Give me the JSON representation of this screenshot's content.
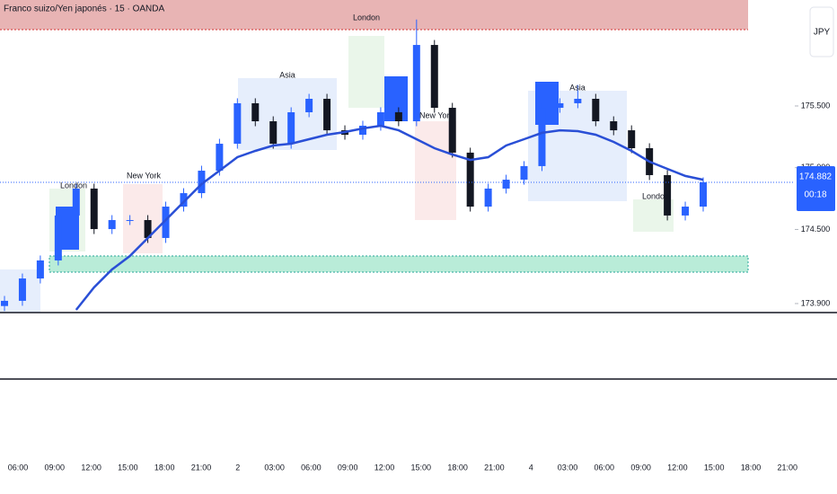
{
  "chart_data": {
    "type": "candlestick",
    "title": "Franco suizo/Yen japonés · 15 · OANDA",
    "currency_button": "JPY",
    "ylim": [
      173.827,
      176.358
    ],
    "yticks": [
      {
        "value": 175.5,
        "label": "175.500"
      },
      {
        "value": 175,
        "label": "175.000"
      },
      {
        "value": 174.5,
        "label": "174.500"
      },
      {
        "value": 173.9,
        "label": "173.900"
      }
    ],
    "x_labels": [
      "06:00",
      "09:00",
      "12:00",
      "15:00",
      "18:00",
      "21:00",
      "2",
      "03:00",
      "06:00",
      "09:00",
      "12:00",
      "15:00",
      "18:00",
      "21:00",
      "4",
      "03:00",
      "06:00",
      "09:00",
      "12:00",
      "15:00",
      "18:00",
      "21:00"
    ],
    "up_color": "#2962ff",
    "down_color": "#131722",
    "open": [
      173.88,
      173.922,
      174.103,
      174.249,
      174.613,
      174.831,
      174.503,
      174.576,
      174.576,
      174.431,
      174.685,
      174.794,
      174.976,
      175.194,
      175.522,
      175.376,
      175.194,
      175.449,
      175.558,
      175.303,
      175.267,
      175.34,
      175.449,
      175.376,
      175.994,
      175.485,
      175.122,
      174.685,
      174.831,
      174.903,
      175.013,
      175.485,
      175.522,
      175.558,
      175.376,
      175.303,
      175.158,
      174.94,
      174.613,
      174.685
    ],
    "high": [
      173.962,
      174.143,
      174.289,
      174.653,
      174.871,
      174.871,
      174.616,
      174.616,
      174.616,
      174.725,
      174.834,
      175.016,
      175.234,
      175.562,
      175.562,
      175.416,
      175.489,
      175.598,
      175.598,
      175.343,
      175.38,
      175.489,
      175.489,
      176.2,
      176.034,
      175.525,
      175.162,
      174.871,
      174.943,
      175.053,
      175.525,
      175.562,
      175.67,
      175.598,
      175.416,
      175.343,
      175.198,
      174.98,
      174.725,
      174.922
    ],
    "low": [
      173.84,
      173.882,
      174.063,
      174.209,
      174.573,
      174.463,
      174.463,
      174.536,
      174.391,
      174.391,
      174.645,
      174.754,
      174.936,
      175.154,
      175.336,
      175.154,
      175.154,
      175.409,
      175.263,
      175.227,
      175.227,
      175.3,
      175.336,
      175.336,
      175.445,
      175.082,
      174.645,
      174.645,
      174.791,
      174.863,
      174.973,
      175.445,
      175.482,
      175.336,
      175.263,
      175.118,
      174.9,
      174.573,
      174.573,
      174.645
    ],
    "close": [
      173.922,
      174.103,
      174.249,
      174.613,
      174.831,
      174.503,
      174.576,
      174.576,
      174.431,
      174.685,
      174.794,
      174.976,
      175.194,
      175.522,
      175.376,
      175.194,
      175.449,
      175.558,
      175.303,
      175.267,
      175.34,
      175.449,
      175.376,
      175.994,
      175.485,
      175.122,
      174.685,
      174.831,
      174.903,
      175.013,
      175.485,
      175.522,
      175.558,
      175.376,
      175.303,
      175.158,
      174.94,
      174.613,
      174.685,
      174.882
    ],
    "ma_color": "#2a4fd6",
    "ma": [
      null,
      null,
      null,
      null,
      173.849,
      174.031,
      174.176,
      174.285,
      174.431,
      174.576,
      174.722,
      174.867,
      174.976,
      175.085,
      175.136,
      175.18,
      175.194,
      175.231,
      175.267,
      175.289,
      175.318,
      175.34,
      175.303,
      175.231,
      175.158,
      175.107,
      175.063,
      175.085,
      175.18,
      175.231,
      175.282,
      175.303,
      175.296,
      175.267,
      175.209,
      175.136,
      175.049,
      174.991,
      174.933,
      174.903
    ],
    "session_labels": [
      "London",
      "New York",
      "Asia",
      "London",
      "New York",
      "Asia",
      "London"
    ],
    "last_price": 174.882,
    "countdown": "00:18"
  }
}
